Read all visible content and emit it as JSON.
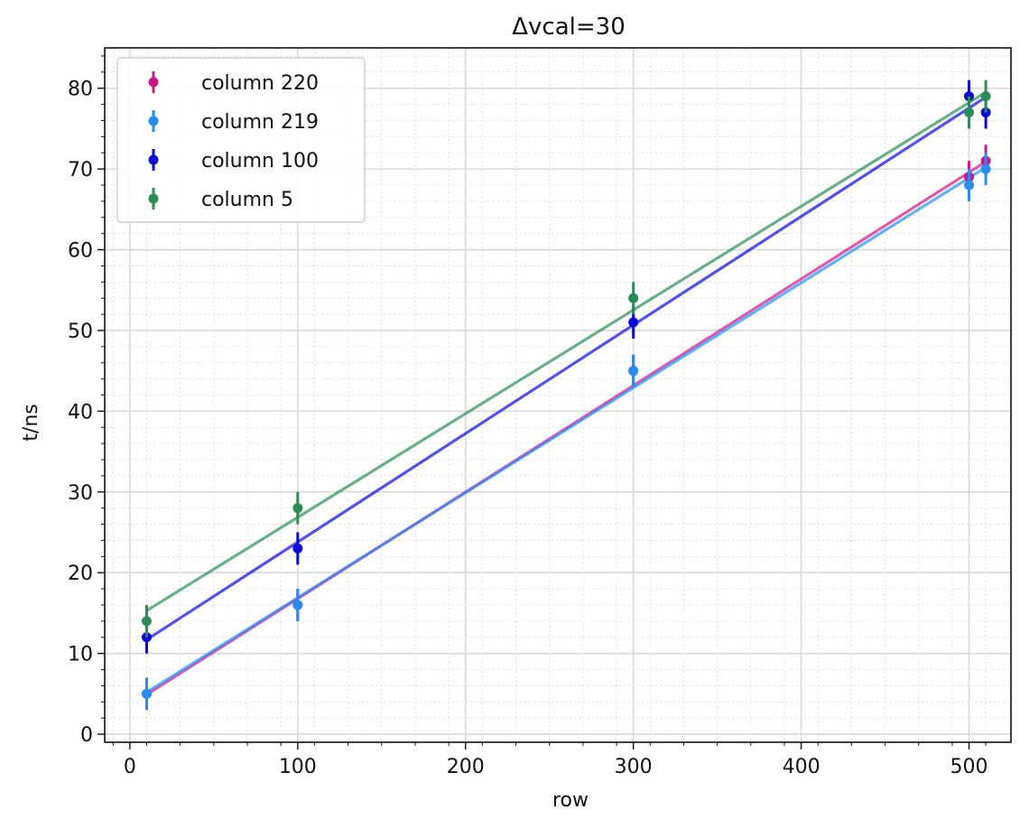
{
  "chart_data": {
    "type": "scatter",
    "title": "Δvcal=30",
    "xlabel": "row",
    "ylabel": "t/ns",
    "xlim": [
      -15,
      525
    ],
    "ylim": [
      -1,
      85
    ],
    "xticks": [
      0,
      100,
      200,
      300,
      400,
      500
    ],
    "yticks": [
      0,
      10,
      20,
      30,
      40,
      50,
      60,
      70,
      80
    ],
    "grid": true,
    "minor_grid": true,
    "legend_position": "top-left",
    "error_bar": 2,
    "series": [
      {
        "name": "column 220",
        "color": "#c51b8a",
        "x": [
          10,
          100,
          300,
          500,
          510
        ],
        "y": [
          5,
          16,
          45,
          69,
          71
        ],
        "fit": {
          "x": [
            10,
            510
          ],
          "y": [
            4.9,
            70.9
          ]
        }
      },
      {
        "name": "column 219",
        "color": "#2b8cee",
        "x": [
          10,
          100,
          300,
          500,
          510
        ],
        "y": [
          5,
          16,
          45,
          68,
          70
        ],
        "fit": {
          "x": [
            10,
            510
          ],
          "y": [
            5.2,
            70.2
          ]
        }
      },
      {
        "name": "column 100",
        "color": "#0a0ad0",
        "x": [
          10,
          100,
          300,
          500,
          510
        ],
        "y": [
          12,
          23,
          51,
          79,
          77
        ],
        "fit": {
          "x": [
            10,
            510
          ],
          "y": [
            11.7,
            78.9
          ]
        }
      },
      {
        "name": "column 5",
        "color": "#2e8b57",
        "x": [
          10,
          100,
          300,
          500,
          510
        ],
        "y": [
          14,
          28,
          54,
          77,
          79
        ],
        "fit": {
          "x": [
            10,
            510
          ],
          "y": [
            15.3,
            79.5
          ]
        }
      }
    ]
  }
}
